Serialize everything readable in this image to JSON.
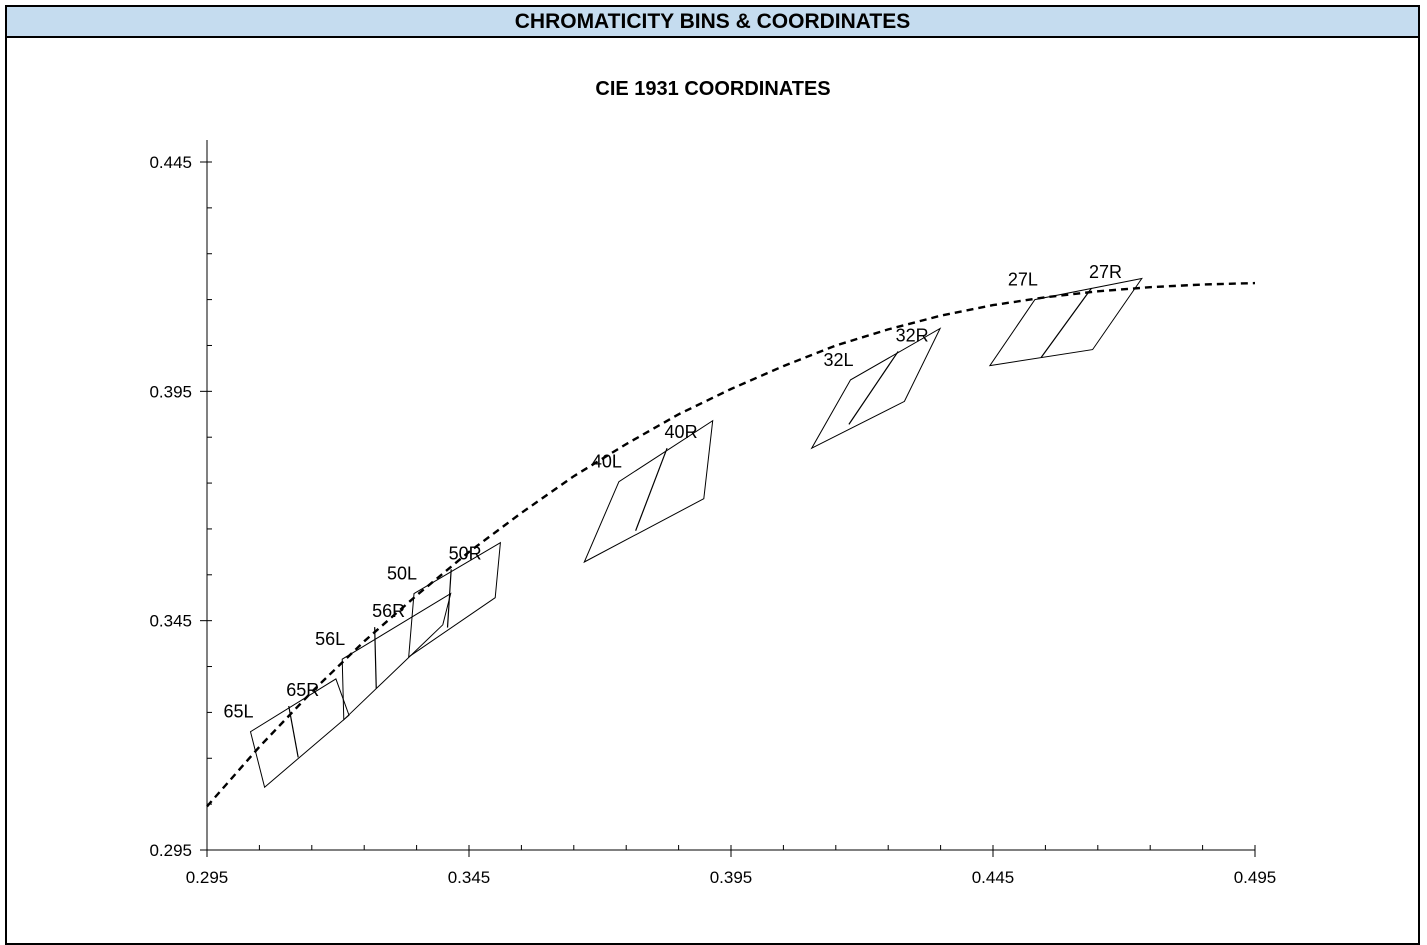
{
  "header": {
    "title": "CHROMATICITY BINS & COORDINATES",
    "background": "#c5dcef"
  },
  "chart_data": {
    "type": "scatter",
    "title": "CIE 1931 COORDINATES",
    "xlabel": "",
    "ylabel": "",
    "xlim": [
      0.295,
      0.495
    ],
    "ylim": [
      0.295,
      0.45
    ],
    "x_ticks": [
      "0.295",
      "0.345",
      "0.395",
      "0.445",
      "0.495"
    ],
    "y_ticks": [
      "0.295",
      "0.345",
      "0.395",
      "0.445"
    ],
    "x_minor_step": 0.01,
    "y_minor_step": 0.01,
    "grid": false,
    "curve": {
      "style": "dashed",
      "x": [
        0.295,
        0.305,
        0.315,
        0.325,
        0.335,
        0.345,
        0.355,
        0.365,
        0.375,
        0.385,
        0.395,
        0.405,
        0.415,
        0.425,
        0.435,
        0.445,
        0.455,
        0.465,
        0.475,
        0.485,
        0.495
      ],
      "y": [
        0.3045,
        0.3175,
        0.3295,
        0.3405,
        0.3505,
        0.36,
        0.3685,
        0.3765,
        0.3835,
        0.39,
        0.3955,
        0.4005,
        0.405,
        0.4085,
        0.4115,
        0.4138,
        0.4155,
        0.4168,
        0.4177,
        0.4183,
        0.4186
      ]
    },
    "bins": [
      {
        "left_label": "65L",
        "right_label": "65R",
        "quad": [
          [
            0.306,
            0.3087
          ],
          [
            0.3221,
            0.3244
          ],
          [
            0.3196,
            0.3323
          ],
          [
            0.3033,
            0.3208
          ]
        ],
        "divider": [
          [
            0.3124,
            0.3152
          ],
          [
            0.3106,
            0.3264
          ]
        ]
      },
      {
        "left_label": "56L",
        "right_label": "56R",
        "quad": [
          [
            0.3211,
            0.3234
          ],
          [
            0.34,
            0.3441
          ],
          [
            0.3415,
            0.3509
          ],
          [
            0.3208,
            0.3366
          ]
        ],
        "divider": [
          [
            0.3273,
            0.3302
          ],
          [
            0.327,
            0.3436
          ]
        ]
      },
      {
        "left_label": "50L",
        "right_label": "50R",
        "quad": [
          [
            0.3335,
            0.3371
          ],
          [
            0.35,
            0.35
          ],
          [
            0.351,
            0.362
          ],
          [
            0.3345,
            0.3509
          ]
        ],
        "divider": [
          [
            0.3409,
            0.3435
          ],
          [
            0.3416,
            0.3562
          ]
        ]
      },
      {
        "left_label": "40L",
        "right_label": "40R",
        "quad": [
          [
            0.367,
            0.3578
          ],
          [
            0.3898,
            0.3716
          ],
          [
            0.3915,
            0.3886
          ],
          [
            0.3736,
            0.3753
          ]
        ],
        "divider": [
          [
            0.3768,
            0.3646
          ],
          [
            0.3828,
            0.3826
          ]
        ]
      },
      {
        "left_label": "32L",
        "right_label": "32R",
        "quad": [
          [
            0.4104,
            0.3826
          ],
          [
            0.4281,
            0.3928
          ],
          [
            0.4349,
            0.4087
          ],
          [
            0.4178,
            0.3975
          ]
        ],
        "divider": [
          [
            0.4175,
            0.3878
          ],
          [
            0.4269,
            0.4037
          ]
        ]
      },
      {
        "left_label": "27L",
        "right_label": "27R",
        "quad": [
          [
            0.4444,
            0.4006
          ],
          [
            0.464,
            0.4041
          ],
          [
            0.4734,
            0.4196
          ],
          [
            0.453,
            0.415
          ]
        ],
        "divider": [
          [
            0.4542,
            0.4024
          ],
          [
            0.4638,
            0.4175
          ]
        ]
      }
    ]
  }
}
